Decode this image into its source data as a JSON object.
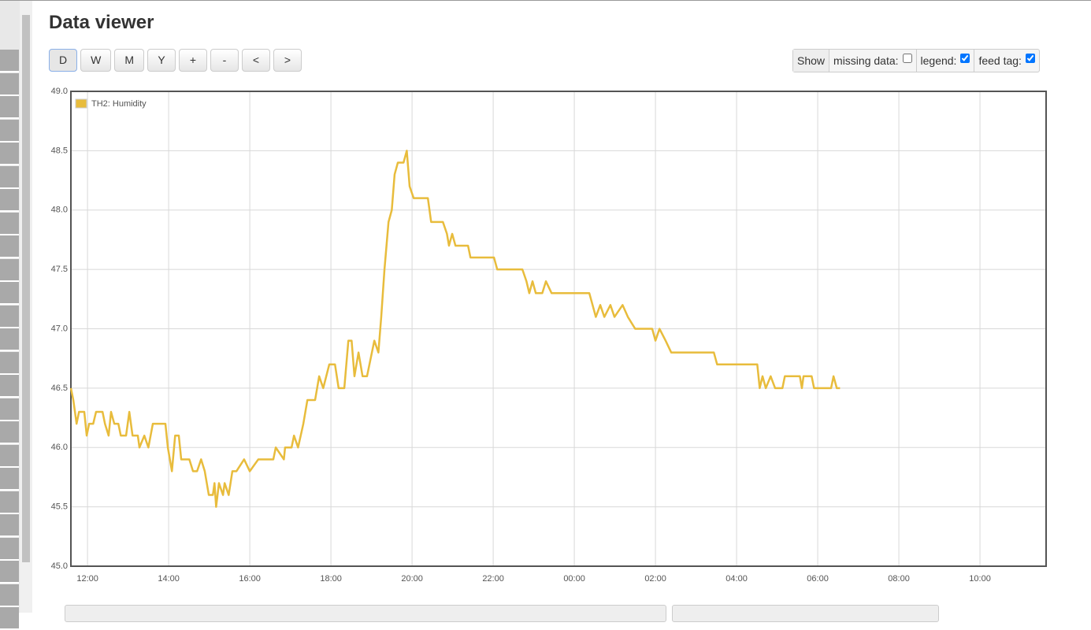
{
  "header": {
    "title": "Data viewer"
  },
  "buttons": [
    "D",
    "W",
    "M",
    "Y",
    "+",
    "-",
    "<",
    ">"
  ],
  "show_options": {
    "label": "Show",
    "items": [
      {
        "label": "missing data:",
        "checked": false
      },
      {
        "label": "legend:",
        "checked": true
      },
      {
        "label": "feed tag:",
        "checked": true
      }
    ]
  },
  "chart_data": {
    "type": "line",
    "x": [
      11.59,
      11.65,
      11.73,
      11.79,
      11.92,
      11.98,
      12.04,
      12.14,
      12.21,
      12.37,
      12.43,
      12.52,
      12.58,
      12.66,
      12.76,
      12.82,
      12.95,
      13.03,
      13.11,
      13.24,
      13.28,
      13.4,
      13.5,
      13.61,
      13.73,
      13.92,
      13.98,
      14.08,
      14.16,
      14.25,
      14.31,
      14.51,
      14.6,
      14.7,
      14.8,
      14.89,
      14.99,
      15.09,
      15.13,
      15.17,
      15.24,
      15.34,
      15.38,
      15.48,
      15.57,
      15.67,
      15.86,
      16.0,
      16.21,
      16.58,
      16.64,
      16.84,
      16.87,
      17.03,
      17.09,
      17.19,
      17.32,
      17.42,
      17.61,
      17.71,
      17.81,
      17.96,
      18.1,
      18.19,
      18.33,
      18.43,
      18.51,
      18.58,
      18.68,
      18.78,
      18.89,
      19.07,
      19.17,
      19.24,
      19.32,
      19.42,
      19.5,
      19.57,
      19.65,
      19.79,
      19.87,
      19.94,
      20.04,
      20.39,
      20.47,
      20.76,
      20.86,
      20.91,
      20.99,
      21.07,
      21.38,
      21.44,
      22.02,
      22.1,
      22.72,
      22.82,
      22.89,
      22.97,
      23.05,
      23.21,
      23.3,
      23.44,
      23.63,
      24.37,
      24.45,
      24.53,
      24.64,
      24.74,
      24.89,
      24.99,
      25.19,
      25.32,
      25.5,
      25.92,
      26.0,
      26.1,
      26.25,
      26.39,
      27.44,
      27.52,
      28.51,
      28.57,
      28.64,
      28.72,
      28.84,
      28.95,
      29.13,
      29.19,
      29.56,
      29.61,
      29.65,
      29.85,
      29.91,
      30.33,
      30.39,
      30.47,
      30.55
    ],
    "series": [
      {
        "name": "TH2: Humidity",
        "color": "#e8bc3c",
        "values": [
          46.5,
          46.4,
          46.2,
          46.3,
          46.3,
          46.1,
          46.2,
          46.2,
          46.3,
          46.3,
          46.2,
          46.1,
          46.3,
          46.2,
          46.2,
          46.1,
          46.1,
          46.3,
          46.1,
          46.1,
          46.0,
          46.1,
          46.0,
          46.2,
          46.2,
          46.2,
          46.0,
          45.8,
          46.1,
          46.1,
          45.9,
          45.9,
          45.8,
          45.8,
          45.9,
          45.8,
          45.6,
          45.6,
          45.7,
          45.5,
          45.7,
          45.6,
          45.7,
          45.6,
          45.8,
          45.8,
          45.9,
          45.8,
          45.9,
          45.9,
          46.0,
          45.9,
          46.0,
          46.0,
          46.1,
          46.0,
          46.2,
          46.4,
          46.4,
          46.6,
          46.5,
          46.7,
          46.7,
          46.5,
          46.5,
          46.9,
          46.9,
          46.6,
          46.8,
          46.6,
          46.6,
          46.9,
          46.8,
          47.1,
          47.5,
          47.9,
          48.0,
          48.3,
          48.4,
          48.4,
          48.5,
          48.2,
          48.1,
          48.1,
          47.9,
          47.9,
          47.8,
          47.7,
          47.8,
          47.7,
          47.7,
          47.6,
          47.6,
          47.5,
          47.5,
          47.4,
          47.3,
          47.4,
          47.3,
          47.3,
          47.4,
          47.3,
          47.3,
          47.3,
          47.2,
          47.1,
          47.2,
          47.1,
          47.2,
          47.1,
          47.2,
          47.1,
          47.0,
          47.0,
          46.9,
          47.0,
          46.9,
          46.8,
          46.8,
          46.7,
          46.7,
          46.5,
          46.6,
          46.5,
          46.6,
          46.5,
          46.5,
          46.6,
          46.6,
          46.5,
          46.6,
          46.6,
          46.5,
          46.5,
          46.6,
          46.5,
          46.5
        ]
      }
    ],
    "xlim": [
      11.59,
      35.63
    ],
    "ylim": [
      45,
      49
    ],
    "xticks": [
      {
        "value": 12,
        "label": "12:00"
      },
      {
        "value": 14,
        "label": "14:00"
      },
      {
        "value": 16,
        "label": "16:00"
      },
      {
        "value": 18,
        "label": "18:00"
      },
      {
        "value": 20,
        "label": "20:00"
      },
      {
        "value": 22,
        "label": "22:00"
      },
      {
        "value": 24,
        "label": "00:00"
      },
      {
        "value": 26,
        "label": "02:00"
      },
      {
        "value": 28,
        "label": "04:00"
      },
      {
        "value": 30,
        "label": "06:00"
      },
      {
        "value": 32,
        "label": "08:00"
      },
      {
        "value": 34,
        "label": "10:00"
      }
    ],
    "yticks": [
      {
        "value": 45,
        "label": "45.0"
      },
      {
        "value": 45.5,
        "label": "45.5"
      },
      {
        "value": 46,
        "label": "46.0"
      },
      {
        "value": 46.5,
        "label": "46.5"
      },
      {
        "value": 47,
        "label": "47.0"
      },
      {
        "value": 47.5,
        "label": "47.5"
      },
      {
        "value": 48,
        "label": "48.0"
      },
      {
        "value": 48.5,
        "label": "48.5"
      },
      {
        "value": 49,
        "label": "49.0"
      }
    ],
    "grid": true,
    "legend": "top-left"
  }
}
